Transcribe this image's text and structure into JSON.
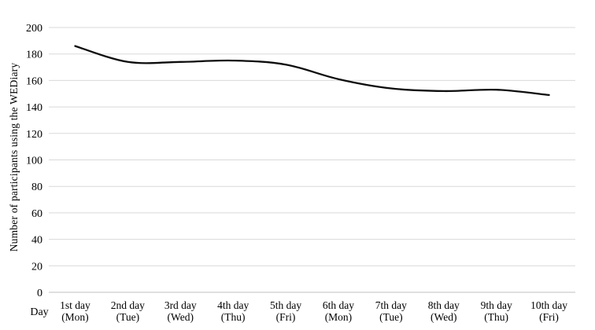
{
  "chart_data": {
    "type": "line",
    "title": "",
    "xlabel": "Day",
    "ylabel": "Number of participants using the WEDiary",
    "categories": [
      "1st day",
      "2nd day",
      "3rd day",
      "4th day",
      "5th day",
      "6th day",
      "7th day",
      "8th day",
      "9th day",
      "10th day"
    ],
    "weekdays": [
      "(Mon)",
      "(Tue)",
      "(Wed)",
      "(Thu)",
      "(Fri)",
      "(Mon)",
      "(Tue)",
      "(Wed)",
      "(Thu)",
      "(Fri)"
    ],
    "series": [
      {
        "name": "Number of participants using the WEDiary",
        "values": [
          186,
          174,
          174,
          175,
          172,
          161,
          154,
          152,
          153,
          149
        ]
      }
    ],
    "ylim": [
      0,
      200
    ],
    "ytick_step": 20,
    "ytick_labels": [
      "0",
      "20",
      "40",
      "60",
      "80",
      "100",
      "120",
      "140",
      "160",
      "180",
      "200"
    ],
    "grid": true,
    "legend": false,
    "smoothed": true,
    "line_color": "#0d0d0d",
    "gridline_color": "#d9d9d9",
    "axis_line_color": "#bfbfbf",
    "text_color": "#000000"
  }
}
